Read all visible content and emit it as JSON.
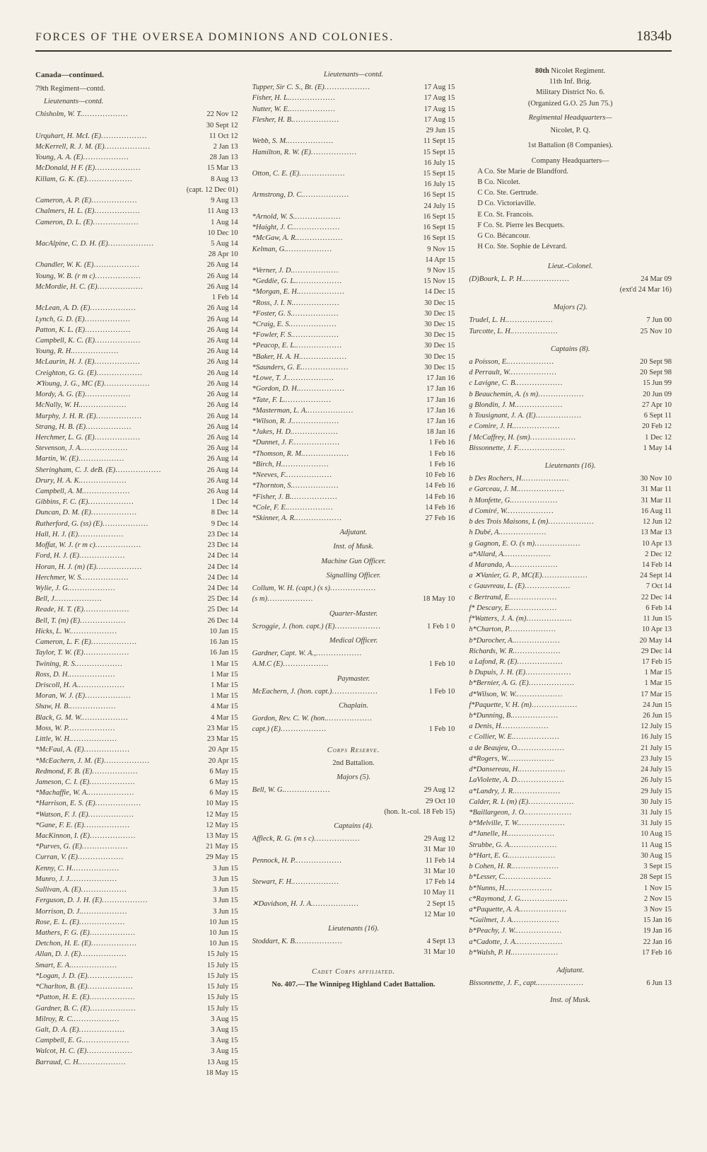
{
  "header": {
    "title": "FORCES OF THE OVERSEA DOMINIONS AND COLONIES.",
    "page_number": "1834b"
  },
  "columns": {
    "col1": {
      "heading1": "Canada—continued.",
      "heading2": "79th Regiment—contd.",
      "heading3": "Lieutenants—contd.",
      "entries": [
        {
          "n": "Chisholm, W. T.",
          "d": "22 Nov 12"
        },
        {
          "n": "",
          "d": "30 Sept 12",
          "indent": true
        },
        {
          "n": "Urquhart, H. McI. (E)",
          "d": "11 Oct 12"
        },
        {
          "n": "McKerrell, R. J. M. (E)",
          "d": "2 Jan 13"
        },
        {
          "n": "Young, A. A. (E)",
          "d": "28 Jan 13"
        },
        {
          "n": "McDonald, H F. (E)",
          "d": "15 Mar 13"
        },
        {
          "n": "Killam, G. K. (E)",
          "d": "8 Aug 13"
        },
        {
          "n": "",
          "d": "(capt. 12 Dec 01)",
          "indent": true
        },
        {
          "n": "Cameron, A. P. (E)",
          "d": "9 Aug 13"
        },
        {
          "n": "Chalmers, H. L. (E)",
          "d": "11 Aug 13"
        },
        {
          "n": "Cameron, D. L. (E)",
          "d": "1 Aug 14"
        },
        {
          "n": "",
          "d": "10 Dec 10",
          "indent": true
        },
        {
          "n": "MacAlpine, C. D. H. (E)",
          "d": "5 Aug 14"
        },
        {
          "n": "",
          "d": "28 Apr 10",
          "indent": true
        },
        {
          "n": "Chandler, W. K. (E)",
          "d": "26 Aug 14"
        },
        {
          "n": "Young, W. B. (r m c)",
          "d": "26 Aug 14"
        },
        {
          "n": "McMordie, H. C. (E)",
          "d": "26 Aug 14"
        },
        {
          "n": "",
          "d": "1 Feb 14",
          "indent": true
        },
        {
          "n": "McLean, A. D. (E)",
          "d": "26 Aug 14"
        },
        {
          "n": "Lynch, G. D. (E)",
          "d": "26 Aug 14"
        },
        {
          "n": "Patton, K. L. (E)",
          "d": "26 Aug 14"
        },
        {
          "n": "Campbell, K. C. (E)",
          "d": "26 Aug 14"
        },
        {
          "n": "Young, R. H.",
          "d": "26 Aug 14"
        },
        {
          "n": "McLaurin, H. J. (E)",
          "d": "26 Aug 14"
        },
        {
          "n": "Creighton, G. G. (E)",
          "d": "26 Aug 14"
        },
        {
          "n": "✕Young, J. G., MC (E)",
          "d": "26 Aug 14"
        },
        {
          "n": "Mordy, A. G. (E)",
          "d": "26 Aug 14"
        },
        {
          "n": "McNally, W. H.",
          "d": "26 Aug 14"
        },
        {
          "n": "Murphy, J. H. R. (E)",
          "d": "26 Aug 14"
        },
        {
          "n": "Strang, H. B. (E)",
          "d": "26 Aug 14"
        },
        {
          "n": "Herchmer, L. G. (E)",
          "d": "26 Aug 14"
        },
        {
          "n": "Stevenson, J. A.",
          "d": "26 Aug 14"
        },
        {
          "n": "Martin, W. (E)",
          "d": "26 Aug 14"
        },
        {
          "n": "Sheringham, C. J. deB. (E)",
          "d": "26 Aug 14"
        },
        {
          "n": "Drury, H. A. K.",
          "d": "26 Aug 14"
        },
        {
          "n": "Campbell, A. M.",
          "d": "26 Aug 14"
        },
        {
          "n": "Gibbins, F. C. (E)",
          "d": "1 Dec 14"
        },
        {
          "n": "Duncan, D. M. (E)",
          "d": "8 Dec 14"
        },
        {
          "n": "Rutherford, G. (ss) (E)",
          "d": "9 Dec 14"
        },
        {
          "n": "Hall, H. J. (E)",
          "d": "23 Dec 14"
        },
        {
          "n": "Moffat, W. J. (r m c)",
          "d": "23 Dec 14"
        },
        {
          "n": "Ford, H. J. (E)",
          "d": "24 Dec 14"
        },
        {
          "n": "Horan, H. J. (m) (E)",
          "d": "24 Dec 14"
        },
        {
          "n": "Herchmer, W. S.",
          "d": "24 Dec 14"
        },
        {
          "n": "Wylie, J. G.",
          "d": "24 Dec 14"
        },
        {
          "n": "Bell, J.",
          "d": "25 Dec 14"
        },
        {
          "n": "Reade, H. T. (E)",
          "d": "25 Dec 14"
        },
        {
          "n": "Bell, T. (m) (E)",
          "d": "26 Dec 14"
        },
        {
          "n": "Hicks, L. W.",
          "d": "10 Jan 15"
        },
        {
          "n": "Cameron, L. F. (E)",
          "d": "16 Jan 15"
        },
        {
          "n": "Taylor, T. W. (E)",
          "d": "16 Jan 15"
        },
        {
          "n": "Twining, R. S.",
          "d": "1 Mar 15"
        },
        {
          "n": "Ross, D. H.",
          "d": "1 Mar 15"
        },
        {
          "n": "Driscoll, H. A.",
          "d": "1 Mar 15"
        },
        {
          "n": "Moran, W. J. (E)",
          "d": "1 Mar 15"
        },
        {
          "n": "Shaw, H. B.",
          "d": "4 Mar 15"
        },
        {
          "n": "Black, G. M. W.",
          "d": "4 Mar 15"
        },
        {
          "n": "Moss, W. P.",
          "d": "23 Mar 15"
        },
        {
          "n": "Little, W. H.",
          "d": "23 Mar 15"
        },
        {
          "n": "*McFaul, A. (E)",
          "d": "20 Apr 15"
        },
        {
          "n": "*McEachern, J. M. (E)",
          "d": "20 Apr 15"
        },
        {
          "n": "Redmond, F. B. (E)",
          "d": "6 May 15"
        },
        {
          "n": "Jameson, C. I. (E)",
          "d": "6 May 15"
        },
        {
          "n": "*Machaffie, W. A.",
          "d": "6 May 15"
        },
        {
          "n": "*Harrison, E. S. (E)",
          "d": "10 May 15"
        },
        {
          "n": "*Watson, F. J. (E)",
          "d": "12 May 15"
        },
        {
          "n": "*Gane, F. E. (E)",
          "d": "12 May 15"
        },
        {
          "n": "MacKinnon, I. (E)",
          "d": "13 May 15"
        },
        {
          "n": "*Purves, G. (E)",
          "d": "21 May 15"
        },
        {
          "n": "Curran, V. (E)",
          "d": "29 May 15"
        },
        {
          "n": "Kenny, C. H.",
          "d": "3 Jun 15"
        },
        {
          "n": "Munro, J. J.",
          "d": "3 Jun 15"
        },
        {
          "n": "Sullivan, A. (E)",
          "d": "3 Jun 15"
        },
        {
          "n": "Ferguson, D. J. H. (E)",
          "d": "3 Jun 15"
        },
        {
          "n": "Morrison, D. J.",
          "d": "3 Jun 15"
        },
        {
          "n": "Rose, E. L. (E)",
          "d": "10 Jun 15"
        },
        {
          "n": "Mathers, F. G. (E)",
          "d": "10 Jun 15"
        },
        {
          "n": "Detchon, H. E. (E)",
          "d": "10 Jun 15"
        },
        {
          "n": "Allan, D. J. (E)",
          "d": "15 July 15"
        },
        {
          "n": "Smart, E. A.",
          "d": "15 July 15"
        },
        {
          "n": "*Logan, J. D. (E)",
          "d": "15 July 15"
        },
        {
          "n": "*Charlton, B. (E)",
          "d": "15 July 15"
        },
        {
          "n": "*Patton, H. E. (E)",
          "d": "15 July 15"
        },
        {
          "n": "Gardner, B. C. (E)",
          "d": "15 July 15"
        },
        {
          "n": "Milroy, R. C.",
          "d": "3 Aug 15"
        },
        {
          "n": "Galt, D. A. (E)",
          "d": "3 Aug 15"
        },
        {
          "n": "Campbell, E. G.",
          "d": "3 Aug 15"
        },
        {
          "n": "Walcot, H. C. (E)",
          "d": "3 Aug 15"
        },
        {
          "n": "Barraud, C. H.",
          "d": "13 Aug 15"
        },
        {
          "n": "",
          "d": "18 May 15",
          "indent": true
        }
      ]
    },
    "col2": {
      "heading3": "Lieutenants—contd.",
      "entries_a": [
        {
          "n": "Tupper, Sir C. S., Bt. (E)",
          "d": "17 Aug 15"
        },
        {
          "n": "Fisher, H. L.",
          "d": "17 Aug 15"
        },
        {
          "n": "Nutter, W. E.",
          "d": "17 Aug 15"
        },
        {
          "n": "Flesher, H. B.",
          "d": "17 Aug 15"
        },
        {
          "n": "",
          "d": "29 Jun 15",
          "indent": true
        },
        {
          "n": "Webb, S. M.",
          "d": "11 Sept 15"
        },
        {
          "n": "Hamilton, R. W. (E)",
          "d": "15 Sept 15"
        },
        {
          "n": "",
          "d": "16 July 15",
          "indent": true
        },
        {
          "n": "Otton, C. E. (E)",
          "d": "15 Sept 15"
        },
        {
          "n": "",
          "d": "16 July 15",
          "indent": true
        },
        {
          "n": "Armstrong, D. C.",
          "d": "16 Sept 15"
        },
        {
          "n": "",
          "d": "24 July 15",
          "indent": true
        },
        {
          "n": "*Arnold, W. S.",
          "d": "16 Sept 15"
        },
        {
          "n": "*Haight, J. C.",
          "d": "16 Sept 15"
        },
        {
          "n": "*McGaw, A. R.",
          "d": "16 Sept 15"
        },
        {
          "n": "Kelman, G.",
          "d": "9 Nov 15"
        },
        {
          "n": "",
          "d": "14 Apr 15",
          "indent": true
        },
        {
          "n": "*Verner, J. D.",
          "d": "9 Nov 15"
        },
        {
          "n": "*Geddie, G. L.",
          "d": "15 Nov 15"
        },
        {
          "n": "*Morgan, E. H.",
          "d": "14 Dec 15"
        },
        {
          "n": "*Ross, J. I. N.",
          "d": "30 Dec 15"
        },
        {
          "n": "*Foster, G. S.",
          "d": "30 Dec 15"
        },
        {
          "n": "*Craig, E. S.",
          "d": "30 Dec 15"
        },
        {
          "n": "*Fowler, F. S.",
          "d": "30 Dec 15"
        },
        {
          "n": "*Peacop, E. L.",
          "d": "30 Dec 15"
        },
        {
          "n": "*Baker, H. A. H.",
          "d": "30 Dec 15"
        },
        {
          "n": "*Saunders, G. E.",
          "d": "30 Dec 15"
        },
        {
          "n": "*Lowe, T. J.",
          "d": "17 Jan 16"
        },
        {
          "n": "*Gordon, D. H.",
          "d": "17 Jan 16"
        },
        {
          "n": "*Tate, F. L.",
          "d": "17 Jan 16"
        },
        {
          "n": "*Masterman, L. A.",
          "d": "17 Jan 16"
        },
        {
          "n": "*Wilson, R. J.",
          "d": "17 Jan 16"
        },
        {
          "n": "*Jukes, H. D.",
          "d": "18 Jan 16"
        },
        {
          "n": "*Dunnet, J. F.",
          "d": "1 Feb 16"
        },
        {
          "n": "*Thomson, R. M.",
          "d": "1 Feb 16"
        },
        {
          "n": "*Birch, H.",
          "d": "1 Feb 16"
        },
        {
          "n": "*Neeves, F.",
          "d": "10 Feb 16"
        },
        {
          "n": "*Thornton, S.",
          "d": "14 Feb 16"
        },
        {
          "n": "*Fisher, J. B.",
          "d": "14 Feb 16"
        },
        {
          "n": "*Cole, F. E.",
          "d": "14 Feb 16"
        },
        {
          "n": "*Skinner, A. R.",
          "d": "27 Feb 16"
        }
      ],
      "adjutant_title": "Adjutant.",
      "inst_musk": "Inst. of Musk.",
      "mgo_title": "Machine Gun Officer.",
      "sig_title": "Signalling Officer.",
      "sig_entries": [
        {
          "n": "Collum, W. H. (capt.) (s s)",
          "d": ""
        },
        {
          "n": "(s m)",
          "d": "18 May 10"
        }
      ],
      "qm_title": "Quarter-Master.",
      "qm_entry": {
        "n": "Scroggie, J. (hon. capt.) (E)",
        "d": "1 Feb 1 0"
      },
      "mo_title": "Medical Officer.",
      "mo_entries": [
        {
          "n": "Gardner, Capt. W. A.,",
          "d": ""
        },
        {
          "n": "A.M.C (E)",
          "d": "1 Feb 10"
        }
      ],
      "pm_title": "Paymaster.",
      "pm_entry": {
        "n": "McEachern, J. (hon. capt.)",
        "d": "1 Feb 10"
      },
      "chap_title": "Chaplain.",
      "chap_entries": [
        {
          "n": "Gordon, Rev. C. W. (hon.",
          "d": ""
        },
        {
          "n": "capt.) (E)",
          "d": "1 Feb 10"
        }
      ],
      "corps_reserve": "Corps Reserve.",
      "bn2": "2nd Battalion.",
      "majors_title": "Majors (5).",
      "majors_entries": [
        {
          "n": "Bell, W. G.",
          "d": "29 Aug 12"
        },
        {
          "n": "",
          "d": "29 Oct 10",
          "indent": true
        },
        {
          "n": "",
          "d": "(hon. lt.-col. 18 Feb 15)",
          "indent": true
        }
      ],
      "captains_title": "Captains (4).",
      "captains_entries": [
        {
          "n": "Affleck, R. G. (m s c)",
          "d": "29 Aug 12"
        },
        {
          "n": "",
          "d": "31 Mar 10",
          "indent": true
        },
        {
          "n": "Pennock, H. P.",
          "d": "11 Feb 14"
        },
        {
          "n": "",
          "d": "31 Mar 10",
          "indent": true
        },
        {
          "n": "Stewart, F. H.",
          "d": "17 Feb 14"
        },
        {
          "n": "",
          "d": "10 May 11",
          "indent": true
        },
        {
          "n": "✕Davidson, H. J. A.",
          "d": "2 Sept 15"
        },
        {
          "n": "",
          "d": "12 Mar 10",
          "indent": true
        }
      ],
      "lts_title": "Lieutenants (16).",
      "lts_entries": [
        {
          "n": "Stoddart, K. B.",
          "d": "4 Sept 13"
        },
        {
          "n": "",
          "d": "31 Mar 10",
          "indent": true
        }
      ],
      "cadet_title": "Cadet Corps affiliated.",
      "cadet_text": "No. 407.—The Winnipeg Highland Cadet Battalion."
    },
    "col3": {
      "regiment": "80th Nicolet Regiment.",
      "brig": "11th Inf. Brig.",
      "district": "Military District No. 6.",
      "organized": "(Organized G.O. 25 Jun 75.)",
      "reg_hq": "Regimental Headquarters—",
      "reg_hq_loc": "Nicolet, P. Q.",
      "bn1": "1st Battalion (8 Companies).",
      "co_hq": "Company Headquarters—",
      "companies": [
        "A Co. Ste Marie de Blandford.",
        "B Co. Nicolet.",
        "C Co. Ste. Gertrude.",
        "D Co. Victoriaville.",
        "E Co. St. Francois.",
        "F Co. St. Pierre les Becquets.",
        "G Co. Bécancour.",
        "H Co. Ste. Sophie de Lévrard."
      ],
      "ltcol_title": "Lieut.-Colonel.",
      "ltcol_entries": [
        {
          "n": "(D)Bourk, L. P. H.",
          "d": "24 Mar 09"
        },
        {
          "n": "",
          "d": "(ext'd 24 Mar 16)",
          "indent": true
        }
      ],
      "majors2_title": "Majors (2).",
      "majors2_entries": [
        {
          "n": "Trudel, L. H.",
          "d": "7 Jun 00"
        },
        {
          "n": "Turcotte, L. H.",
          "d": "25 Nov 10"
        }
      ],
      "captains8_title": "Captains (8).",
      "captains8_entries": [
        {
          "n": "a Poisson, E.",
          "d": "20 Sept 98"
        },
        {
          "n": "d Perrault, W.",
          "d": "20 Sept 98"
        },
        {
          "n": "c Lavigne, C. B.",
          "d": "15 Jun 99"
        },
        {
          "n": "b Beauchemin, A. (s m)",
          "d": "20 Jun 09"
        },
        {
          "n": "g Blondin, J. M.",
          "d": "27 Apr 10"
        },
        {
          "n": "h Tousignant, J. A. (E)",
          "d": "6 Sept 11"
        },
        {
          "n": "e Comire, J. H.",
          "d": "20 Feb 12"
        },
        {
          "n": "f McCaffrey, H. (sm)",
          "d": "1 Dec 12"
        },
        {
          "n": "  Bissonnette, J. F.",
          "d": "1 May 14"
        }
      ],
      "lts16_title": "Lieutenants (16).",
      "lts16_entries": [
        {
          "n": "b Des Rochers, H.",
          "d": "30 Nov 10"
        },
        {
          "n": "e Garceau, J. M.",
          "d": "31 Mar 11"
        },
        {
          "n": "h Monfette, G.",
          "d": "31 Mar 11"
        },
        {
          "n": "d Comiré, W.",
          "d": "16 Aug 11"
        },
        {
          "n": "b des Trois Maisons, L (m)",
          "d": "12 Jun 12"
        },
        {
          "n": "h Dubé, A.",
          "d": "13 Mar 13"
        },
        {
          "n": "g Gagnon, E. O. (s m)",
          "d": "10 Apr 13"
        },
        {
          "n": "a*Allard, A.",
          "d": "2 Dec 12"
        },
        {
          "n": "d Maranda, A.",
          "d": "14 Feb 14"
        },
        {
          "n": "a ✕Vanier, G. P., MC(E)",
          "d": "24 Sept 14"
        },
        {
          "n": "c Gauvreau, L. (E)",
          "d": "7 Oct 14"
        },
        {
          "n": "c Bertrand, E.",
          "d": "22 Dec 14"
        },
        {
          "n": "f* Descary, E.",
          "d": "6 Feb 14"
        },
        {
          "n": "f*Watters, J. A. (m)",
          "d": "11 Jun 15"
        },
        {
          "n": "h*Charton, P.",
          "d": "10 Apr 13"
        },
        {
          "n": "b*Durocher, A.",
          "d": "20 May 14"
        },
        {
          "n": "Richards, W. R.",
          "d": "29 Dec 14"
        },
        {
          "n": "a Lafond, R. (E)",
          "d": "17 Feb 15"
        },
        {
          "n": "b Dupuis, J. H. (E)",
          "d": "1 Mar 15"
        },
        {
          "n": "b*Bernier, A. G. (E)",
          "d": "1 Mar 15"
        },
        {
          "n": "d*Wilson, W. W.",
          "d": "17 Mar 15"
        },
        {
          "n": "f*Paquette, V. H. (m)",
          "d": "24 Jun 15"
        },
        {
          "n": "b*Dunning, B.",
          "d": "26 Jun 15"
        },
        {
          "n": "a Denis, H.",
          "d": "12 July 15"
        },
        {
          "n": "c Collier, W. E.",
          "d": "16 July 15"
        },
        {
          "n": "a de Beaujeu, O.",
          "d": "21 July 15"
        },
        {
          "n": "d*Rogers, W.",
          "d": "23 July 15"
        },
        {
          "n": "d*Dansereau, H.",
          "d": "24 July 15"
        },
        {
          "n": "  LaViolette, A. D.",
          "d": "26 July 15"
        },
        {
          "n": "a*Landry, J. R.",
          "d": "29 July 15"
        },
        {
          "n": "Calder, R. L (m) (E)",
          "d": "30 July 15"
        },
        {
          "n": "*Baillargeon, J. O.",
          "d": "31 July 15"
        },
        {
          "n": "b*Melville, T. W.",
          "d": "31 July 15"
        },
        {
          "n": "d*Janelle, H.",
          "d": "10 Aug 15"
        },
        {
          "n": "  Strubbe, G. A.",
          "d": "11 Aug 15"
        },
        {
          "n": "b*Hart, E. G.",
          "d": "30 Aug 15"
        },
        {
          "n": "b Cohen, H. R.",
          "d": "3 Sept 15"
        },
        {
          "n": "b*Lesser, C.",
          "d": "28 Sept 15"
        },
        {
          "n": "b*Nunns, H.",
          "d": "1 Nov 15"
        },
        {
          "n": "c*Raymond, J. G.",
          "d": "2 Nov 15"
        },
        {
          "n": "a*Paquette, A. A.",
          "d": "3 Nov 15"
        },
        {
          "n": "*Guilmet, J. A.",
          "d": "15 Jan 16"
        },
        {
          "n": "b*Peachy, J. W.",
          "d": "19 Jan 16"
        },
        {
          "n": "a*Cadotte, J. A.",
          "d": "22 Jan 16"
        },
        {
          "n": "b*Walsh, P. H.",
          "d": "17 Feb 16"
        }
      ],
      "adj_title": "Adjutant.",
      "adj_entry": {
        "n": "Bissonnette, J. F., capt.",
        "d": "6 Jun 13"
      },
      "inst_musk2": "Inst. of Musk."
    }
  }
}
